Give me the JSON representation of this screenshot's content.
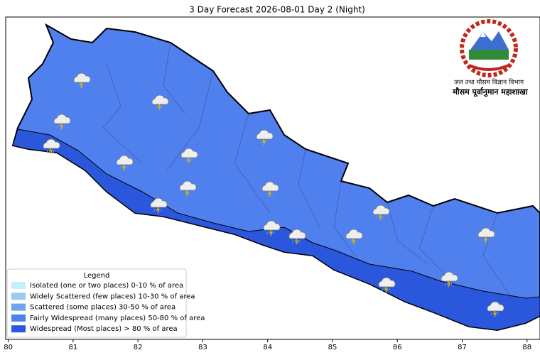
{
  "title": "3 Day Forecast 2026-08-01 Day 2 (Night)",
  "logo": {
    "line1": "जल तथा मौसम विज्ञान विभाग",
    "line2": "मौसम पूर्वानुमान महाशाखा"
  },
  "legend": {
    "title": "Legend",
    "items": [
      {
        "label": "Isolated (one or two places)  0-10 % of area",
        "color": "#c4f0fc"
      },
      {
        "label": "Widely Scattered (few places)  10-30 % of area",
        "color": "#9cc8f2"
      },
      {
        "label": "Scattered (some places)  30-50 % of area",
        "color": "#6ea3ee"
      },
      {
        "label": "Fairly Widespread (many places)  50-80 % of area",
        "color": "#4f80ee"
      },
      {
        "label": "Widespread (Most places) > 80 % of area",
        "color": "#2b57dd"
      }
    ]
  },
  "axes": {
    "xlim": [
      79.96,
      88.2
    ],
    "xticks": [
      80,
      81,
      82,
      83,
      84,
      85,
      86,
      87,
      88
    ]
  }
}
